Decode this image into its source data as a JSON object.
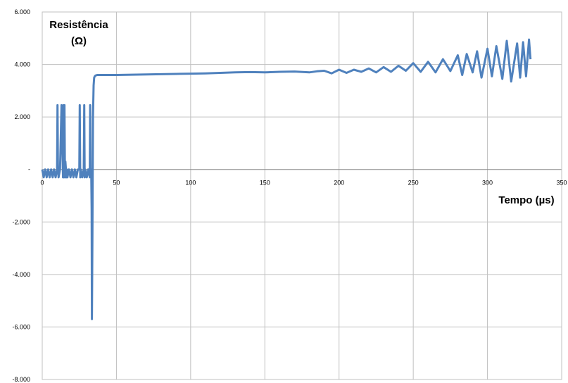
{
  "chart_data": {
    "type": "line",
    "ylabel_line1": "Resistência",
    "ylabel_line2": "(Ω)",
    "xlabel": "Tempo (µs)",
    "xlim": [
      0,
      350
    ],
    "ylim": [
      -8000,
      6000
    ],
    "x_ticks": [
      {
        "value": 0,
        "label": "0"
      },
      {
        "value": 50,
        "label": "50"
      },
      {
        "value": 100,
        "label": "100"
      },
      {
        "value": 150,
        "label": "150"
      },
      {
        "value": 200,
        "label": "200"
      },
      {
        "value": 250,
        "label": "250"
      },
      {
        "value": 300,
        "label": "300"
      },
      {
        "value": 350,
        "label": "350"
      }
    ],
    "y_ticks": [
      {
        "value": 6000,
        "label": "6.000"
      },
      {
        "value": 4000,
        "label": "4.000"
      },
      {
        "value": 2000,
        "label": "2.000"
      },
      {
        "value": 0,
        "label": "-"
      },
      {
        "value": -2000,
        "label": "-2.000"
      },
      {
        "value": -4000,
        "label": "-4.000"
      },
      {
        "value": -6000,
        "label": "-6.000"
      },
      {
        "value": -8000,
        "label": "-8.000"
      }
    ],
    "grid": true,
    "series_color": "#4f81bd",
    "series": [
      {
        "x": [
          0,
          1,
          2,
          3,
          4,
          5,
          6,
          7,
          8,
          9,
          10,
          10.3,
          10.6,
          11,
          12,
          13,
          14,
          14.3,
          14.6,
          15,
          15.3,
          15.6,
          16,
          16.3,
          16.6,
          17,
          18,
          19,
          20,
          21,
          22,
          23,
          24,
          25,
          25.3,
          25.6,
          26,
          27,
          28,
          28.3,
          28.6,
          29,
          30,
          31,
          32,
          32.3,
          32.6,
          33,
          33.3,
          33.5,
          33.8,
          34.2,
          34.6,
          35,
          35.5,
          36,
          36.5,
          37,
          38,
          40,
          45,
          50,
          60,
          70,
          80,
          90,
          100,
          110,
          120,
          130,
          140,
          150,
          160,
          170,
          180,
          185,
          190,
          195,
          200,
          205,
          210,
          215,
          220,
          225,
          230,
          235,
          240,
          245,
          250,
          255,
          260,
          265,
          270,
          275,
          280,
          283,
          286,
          290,
          293,
          296,
          300,
          303,
          306,
          310,
          313,
          316,
          320,
          322,
          324,
          326,
          328,
          329
        ],
        "y": [
          0,
          -300,
          0,
          -300,
          0,
          -300,
          0,
          -300,
          0,
          -300,
          0,
          2450,
          0,
          -300,
          0,
          2450,
          -300,
          2450,
          -300,
          2450,
          -300,
          300,
          0,
          -300,
          0,
          -300,
          0,
          -300,
          0,
          -300,
          0,
          -300,
          0,
          0,
          2450,
          -300,
          0,
          -300,
          0,
          2450,
          -300,
          0,
          -300,
          0,
          -300,
          2450,
          -300,
          0,
          -1500,
          -5700,
          -2500,
          2000,
          3200,
          3500,
          3560,
          3580,
          3590,
          3600,
          3600,
          3600,
          3600,
          3600,
          3610,
          3620,
          3630,
          3640,
          3650,
          3660,
          3680,
          3700,
          3710,
          3700,
          3720,
          3730,
          3700,
          3740,
          3760,
          3660,
          3800,
          3680,
          3800,
          3720,
          3850,
          3700,
          3900,
          3720,
          3950,
          3760,
          4050,
          3720,
          4100,
          3700,
          4200,
          3750,
          4350,
          3600,
          4400,
          3700,
          4500,
          3500,
          4600,
          3550,
          4700,
          3450,
          4900,
          3350,
          4800,
          3500,
          4850,
          3550,
          4950,
          4200
        ]
      }
    ]
  }
}
